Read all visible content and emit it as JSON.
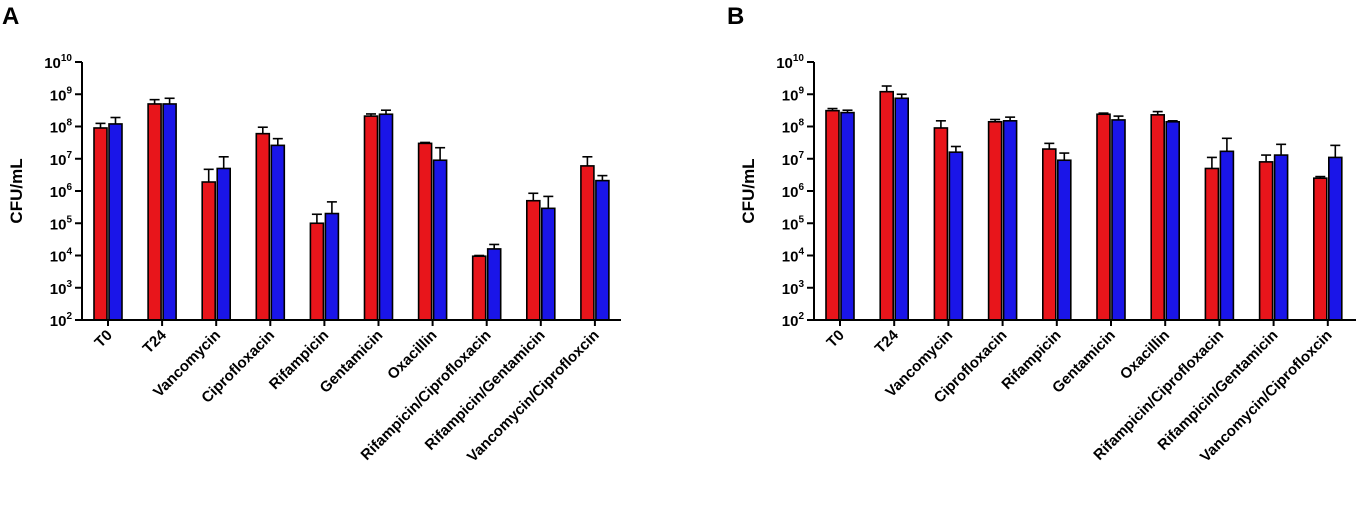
{
  "chart_data": [
    {
      "type": "bar",
      "panel_label": "A",
      "ylabel": "CFU/mL",
      "yscale": "log",
      "ylim_exp": [
        2,
        10
      ],
      "tick_base": "10",
      "y_tick_exponents": [
        "2",
        "3",
        "4",
        "5",
        "6",
        "7",
        "8",
        "9",
        "10"
      ],
      "categories": [
        "T0",
        "T24",
        "Vancomycin",
        "Ciprofloxacin",
        "Rifampicin",
        "Gentamicin",
        "Oxacillin",
        "Rifampicin/Ciprofloxacin",
        "Rifampicin/Gentamicin",
        "Vancomycin/Ciprofloxcin"
      ],
      "series": [
        {
          "name": "red",
          "color": "#e8151b",
          "values": [
            90000000,
            500000000,
            1900000,
            60000000,
            100000,
            210000000,
            30000000,
            9500,
            500000,
            6000000
          ],
          "error_upper": [
            125000000,
            680000000,
            4700000,
            95000000,
            190000,
            245000000,
            32000000,
            10000,
            850000,
            11500000
          ]
        },
        {
          "name": "blue",
          "color": "#1a15e8",
          "values": [
            120000000,
            500000000,
            5000000,
            26000000,
            200000,
            240000000,
            9000000,
            16000,
            290000,
            2100000
          ],
          "error_upper": [
            190000000,
            750000000,
            11500000,
            42000000,
            460000,
            320000000,
            22000000,
            22000,
            680000,
            3000000
          ]
        }
      ]
    },
    {
      "type": "bar",
      "panel_label": "B",
      "ylabel": "CFU/mL",
      "yscale": "log",
      "ylim_exp": [
        2,
        10
      ],
      "tick_base": "10",
      "y_tick_exponents": [
        "2",
        "3",
        "4",
        "5",
        "6",
        "7",
        "8",
        "9",
        "10"
      ],
      "categories": [
        "T0",
        "T24",
        "Vancomycin",
        "Ciprofloxacin",
        "Rifampicin",
        "Gentamicin",
        "Oxacillin",
        "Rifampicin/Ciprofloxacin",
        "Rifampicin/Gentamicin",
        "Vancomycin/Ciprofloxcin"
      ],
      "series": [
        {
          "name": "red",
          "color": "#e8151b",
          "values": [
            310000000,
            1200000000,
            90000000,
            140000000,
            20000000,
            240000000,
            230000000,
            5000000,
            8000000,
            2500000
          ],
          "error_upper": [
            360000000,
            1800000000,
            150000000,
            165000000,
            30000000,
            260000000,
            290000000,
            11000000,
            13000000,
            2800000
          ]
        },
        {
          "name": "blue",
          "color": "#1a15e8",
          "values": [
            270000000,
            750000000,
            16000000,
            150000000,
            9000000,
            160000000,
            140000000,
            17000000,
            13000000,
            11000000
          ],
          "error_upper": [
            320000000,
            1000000000,
            24000000,
            195000000,
            15000000,
            210000000,
            150000000,
            43000000,
            28000000,
            26000000
          ]
        }
      ]
    }
  ]
}
